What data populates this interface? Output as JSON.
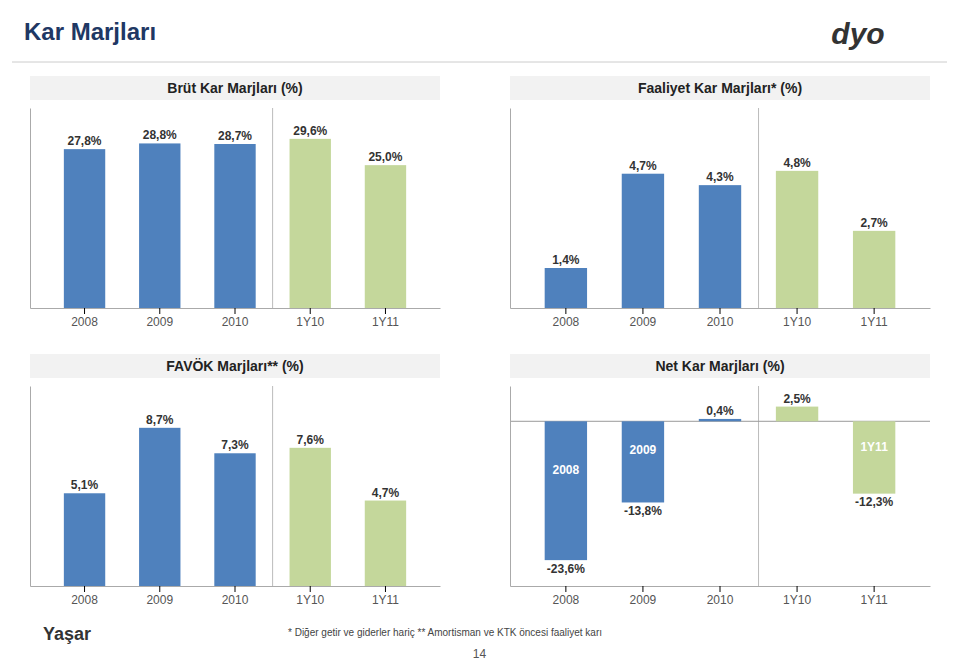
{
  "title": "Kar Marjları",
  "logos": [
    "dyo",
    "Yaşar"
  ],
  "footnote": "* Diğer getir ve giderler hariç  ** Amortisman ve KTK öncesi faaliyet karı",
  "page_number": "14",
  "chart_data": [
    {
      "type": "bar",
      "title": "Brüt Kar Marjları (%)",
      "categories": [
        "2008",
        "2009",
        "2010",
        "1Y10",
        "1Y11"
      ],
      "values": [
        27.8,
        28.8,
        28.7,
        29.6,
        25.0
      ],
      "value_labels": [
        "27,8%",
        "28,8%",
        "28,7%",
        "29,6%",
        "25,0%"
      ],
      "colors": [
        "#4F81BD",
        "#4F81BD",
        "#4F81BD",
        "#C4D79B",
        "#C4D79B"
      ],
      "ylim": [
        0,
        35
      ],
      "data_labels": true,
      "tick_labels": "x"
    },
    {
      "type": "bar",
      "title": "Faaliyet Kar Marjları* (%)",
      "categories": [
        "2008",
        "2009",
        "2010",
        "1Y10",
        "1Y11"
      ],
      "values": [
        1.4,
        4.7,
        4.3,
        4.8,
        2.7
      ],
      "value_labels": [
        "1,4%",
        "4,7%",
        "4,3%",
        "4,8%",
        "2,7%"
      ],
      "colors": [
        "#4F81BD",
        "#4F81BD",
        "#4F81BD",
        "#C4D79B",
        "#C4D79B"
      ],
      "ylim": [
        0,
        7
      ],
      "data_labels": true,
      "tick_labels": "x"
    },
    {
      "type": "bar",
      "title": "FAVÖK Marjları** (%)",
      "categories": [
        "2008",
        "2009",
        "2010",
        "1Y10",
        "1Y11"
      ],
      "values": [
        5.1,
        8.7,
        7.3,
        7.6,
        4.7
      ],
      "value_labels": [
        "5,1%",
        "8,7%",
        "7,3%",
        "7,6%",
        "4,7%"
      ],
      "colors": [
        "#4F81BD",
        "#4F81BD",
        "#4F81BD",
        "#C4D79B",
        "#C4D79B"
      ],
      "ylim": [
        0,
        11
      ],
      "data_labels": true,
      "tick_labels": "x"
    },
    {
      "type": "bar",
      "title": "Net Kar Marjları (%)",
      "categories": [
        "2008",
        "2009",
        "2010",
        "1Y10",
        "1Y11"
      ],
      "values": [
        -23.6,
        -13.8,
        0.4,
        2.5,
        -12.3
      ],
      "value_labels": [
        "-23,6%",
        "-13,8%",
        "0,4%",
        "2,5%",
        "-12,3%"
      ],
      "colors": [
        "#4F81BD",
        "#4F81BD",
        "#4F81BD",
        "#C4D79B",
        "#C4D79B"
      ],
      "ylim": [
        -28,
        6
      ],
      "data_labels": true,
      "tick_labels": "x",
      "annotations": [
        {
          "text": "2008",
          "x": "2008"
        },
        {
          "text": "2009",
          "x": "2009"
        },
        {
          "text": "1Y11",
          "x": "1Y11"
        }
      ]
    }
  ]
}
